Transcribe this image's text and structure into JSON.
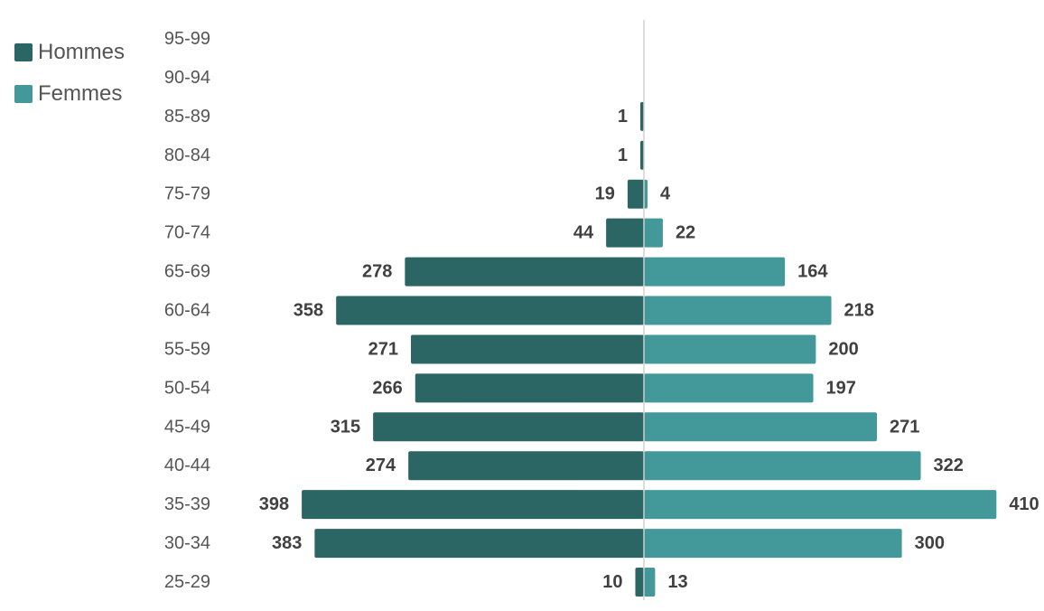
{
  "chart_data": {
    "type": "bar",
    "orientation": "horizontal",
    "title": "",
    "categories": [
      "95-99",
      "90-94",
      "85-89",
      "80-84",
      "75-79",
      "70-74",
      "65-69",
      "60-64",
      "55-59",
      "50-54",
      "45-49",
      "40-44",
      "35-39",
      "30-34",
      "25-29"
    ],
    "series": [
      {
        "name": "Hommes",
        "color": "#2b6665",
        "side": "left",
        "values": [
          0,
          0,
          1,
          1,
          19,
          44,
          278,
          358,
          271,
          266,
          315,
          274,
          398,
          383,
          10
        ]
      },
      {
        "name": "Femmes",
        "color": "#43999a",
        "side": "right",
        "values": [
          0,
          0,
          0,
          0,
          4,
          22,
          164,
          218,
          200,
          197,
          271,
          322,
          410,
          300,
          13
        ]
      }
    ],
    "xlim": [
      -420,
      420
    ],
    "legend_position": "top-left",
    "grid": false
  }
}
